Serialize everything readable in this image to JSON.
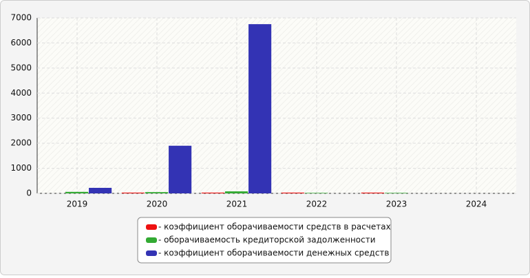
{
  "chart_data": {
    "type": "bar",
    "categories": [
      "2019",
      "2020",
      "2021",
      "2022",
      "2023",
      "2024"
    ],
    "series": [
      {
        "name": "- коэффициент оборачиваемости средств в расчетах",
        "color": "#ee1111",
        "values": [
          0,
          30,
          30,
          30,
          30,
          null
        ]
      },
      {
        "name": "- оборачиваемость кредиторской задолженности",
        "color": "#33aa33",
        "values": [
          60,
          50,
          80,
          20,
          20,
          null
        ]
      },
      {
        "name": "- коэффициент оборачиваемости денежных средств",
        "color": "#3333b4",
        "values": [
          220,
          1900,
          6750,
          0,
          0,
          null
        ]
      }
    ],
    "ylim": [
      0,
      7000
    ],
    "yticks": [
      0,
      1000,
      2000,
      3000,
      4000,
      5000,
      6000,
      7000
    ],
    "grid": true
  }
}
